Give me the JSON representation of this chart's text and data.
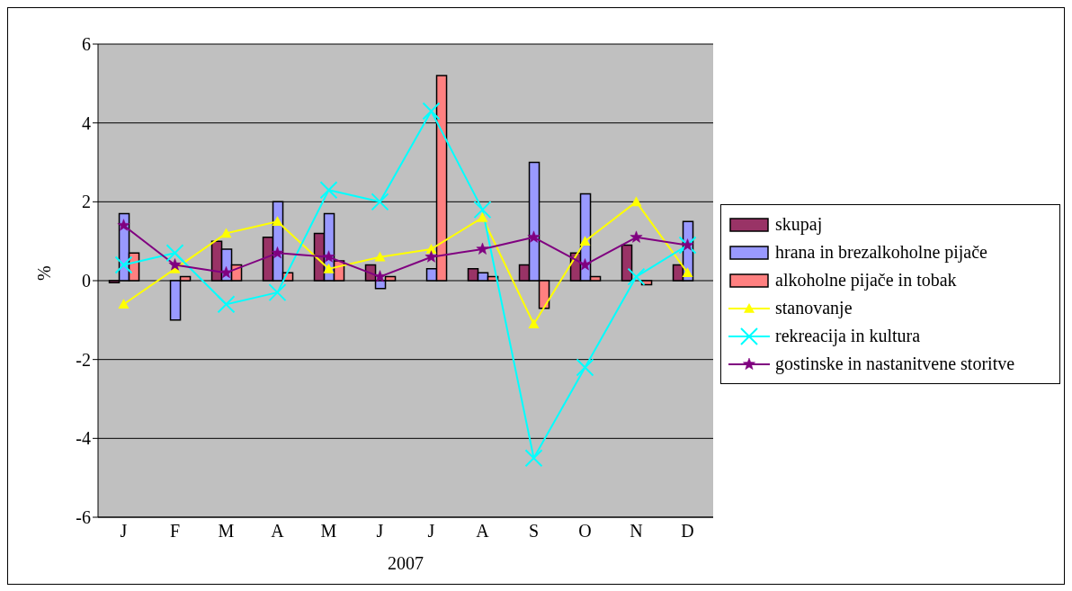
{
  "chart_data": {
    "type": "bar",
    "xlabel": "2007",
    "ylabel": "%",
    "categories": [
      "J",
      "F",
      "M",
      "A",
      "M",
      "J",
      "J",
      "A",
      "S",
      "O",
      "N",
      "D"
    ],
    "series": [
      {
        "name": "skupaj",
        "color": "#993366",
        "values": [
          -0.05,
          0,
          1.0,
          1.1,
          1.2,
          0.4,
          0,
          0.3,
          0.4,
          0.7,
          0.9,
          0.4
        ]
      },
      {
        "name": "hrana in brezalkoholne pijače",
        "color": "#9999ff",
        "values": [
          1.7,
          -1.0,
          0.8,
          2.0,
          1.7,
          -0.2,
          0.3,
          0.2,
          3.0,
          2.2,
          0,
          1.5
        ]
      },
      {
        "name": "alkoholne pijače in tobak",
        "color": "#ff8080",
        "values": [
          0.7,
          0.1,
          0.4,
          0.2,
          0.5,
          0.1,
          5.2,
          0.1,
          -0.7,
          0.1,
          -0.1,
          0
        ]
      },
      {
        "name": "stanovanje",
        "type": "line",
        "marker": "triangle",
        "color": "#ffff00",
        "values": [
          -0.6,
          0.3,
          1.2,
          1.5,
          0.3,
          0.6,
          0.8,
          1.6,
          -1.1,
          1.0,
          2.0,
          0.2
        ]
      },
      {
        "name": "rekreacija in kultura",
        "type": "line",
        "marker": "cross",
        "color": "#00ffff",
        "values": [
          0.4,
          0.7,
          -0.6,
          -0.3,
          2.3,
          2.0,
          4.3,
          1.8,
          -4.5,
          -2.2,
          0.1,
          0.9
        ]
      },
      {
        "name": "gostinske in nastanitvene storitve",
        "type": "line",
        "marker": "star",
        "color": "#800080",
        "values": [
          1.4,
          0.4,
          0.2,
          0.7,
          0.6,
          0.1,
          0.6,
          0.8,
          1.1,
          0.4,
          1.1,
          0.9
        ]
      }
    ],
    "ylim": [
      -6,
      6
    ],
    "yticks": [
      -6,
      -4,
      -2,
      0,
      2,
      4,
      6
    ],
    "grid": "y",
    "legend": "right"
  }
}
